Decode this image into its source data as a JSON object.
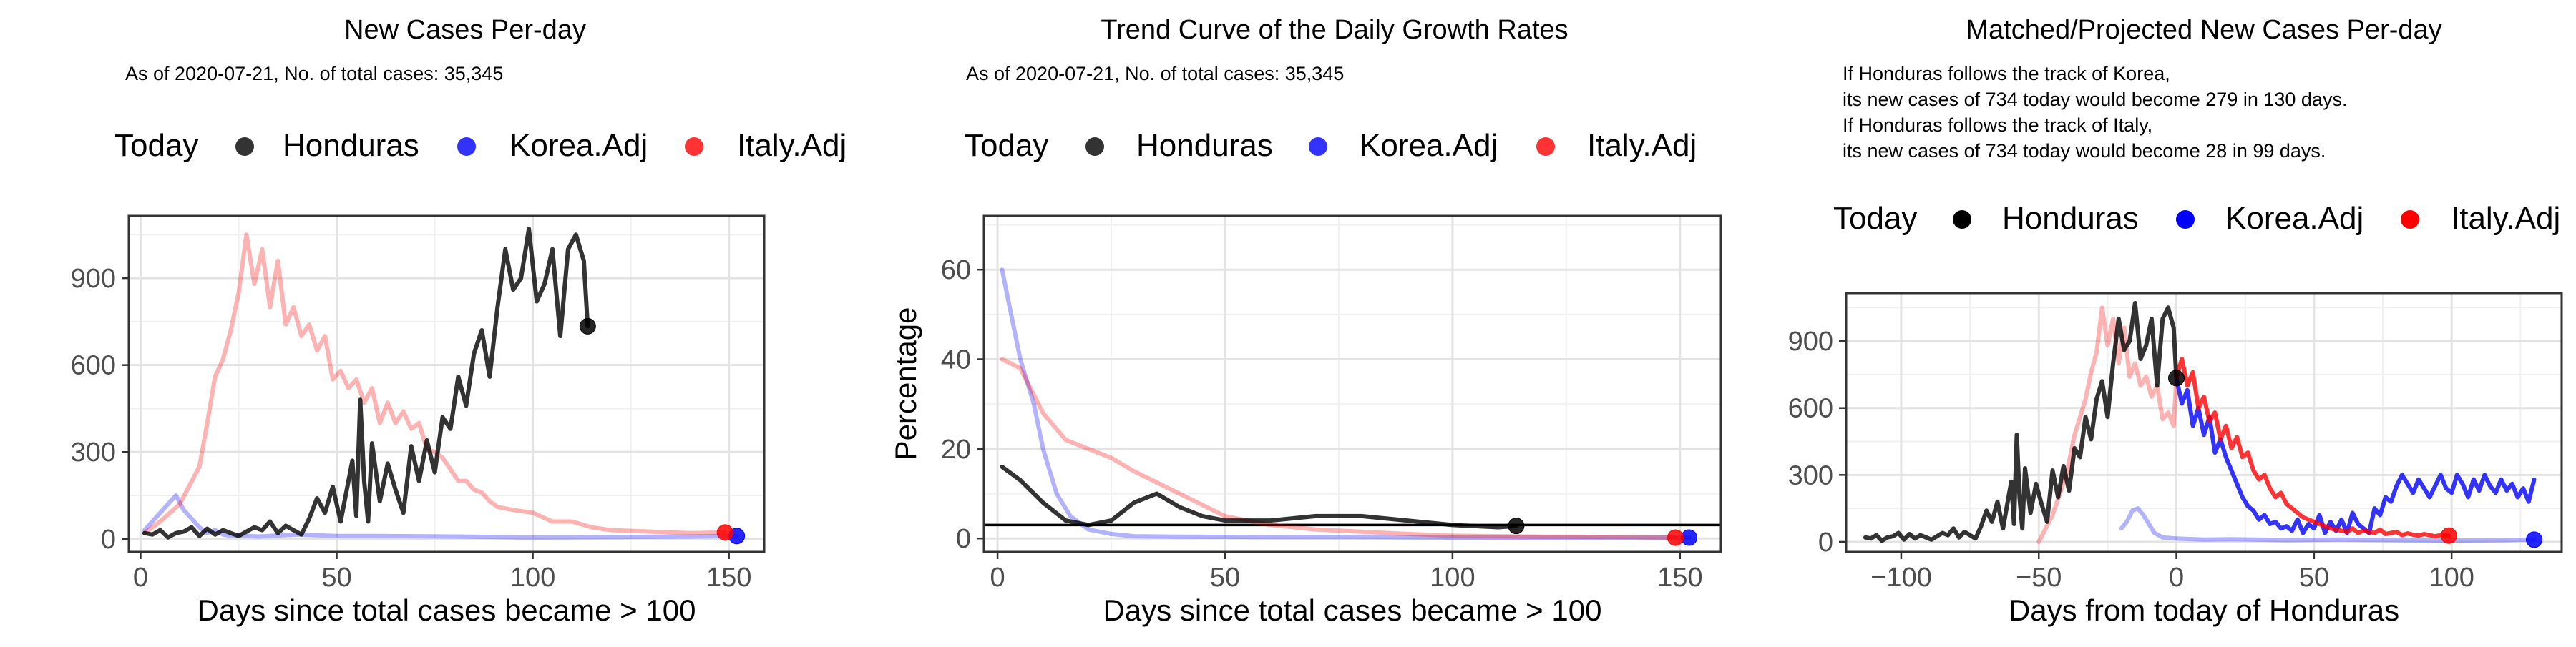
{
  "chart_data": [
    {
      "type": "line",
      "title": "New Cases Per-day",
      "subtitle": "As of 2020-07-21, No. of total cases: 35,345",
      "legend": {
        "title": "Today",
        "placement": "top",
        "entries": [
          "Honduras",
          "Korea.Adj",
          "Italy.Adj"
        ]
      },
      "xlabel": "Days since total cases became > 100",
      "ylabel": "",
      "xlim": [
        -3,
        159
      ],
      "ylim": [
        -45,
        1115
      ],
      "xticks": [
        0,
        50,
        100,
        150
      ],
      "yticks": [
        0,
        300,
        600,
        900
      ],
      "grid": true,
      "series": [
        {
          "name": "Honduras",
          "color": "#000000",
          "opacity": 0.8,
          "width": 6,
          "x": [
            1,
            3,
            5,
            7,
            9,
            11,
            13,
            15,
            17,
            19,
            21,
            23,
            25,
            27,
            29,
            31,
            33,
            35,
            37,
            39,
            41,
            43,
            45,
            47,
            49,
            51,
            53,
            54,
            55,
            56,
            57,
            58,
            59,
            61,
            63,
            65,
            67,
            69,
            71,
            73,
            75,
            77,
            79,
            81,
            83,
            85,
            87,
            89,
            91,
            93,
            95,
            97,
            99,
            101,
            103,
            105,
            107,
            109,
            111,
            113,
            114
          ],
          "y": [
            20,
            15,
            30,
            5,
            20,
            25,
            40,
            10,
            35,
            15,
            30,
            20,
            10,
            25,
            40,
            30,
            60,
            20,
            45,
            30,
            15,
            70,
            140,
            90,
            180,
            60,
            200,
            270,
            80,
            480,
            200,
            60,
            330,
            130,
            260,
            170,
            90,
            320,
            200,
            340,
            230,
            420,
            380,
            560,
            460,
            640,
            720,
            560,
            800,
            1000,
            860,
            900,
            1070,
            820,
            880,
            1000,
            700,
            1000,
            1050,
            960,
            734
          ]
        },
        {
          "name": "Korea.Adj",
          "color": "#0000ff",
          "opacity": 0.3,
          "width": 6,
          "x": [
            1,
            3,
            5,
            7,
            9,
            11,
            13,
            15,
            17,
            19,
            21,
            23,
            25,
            30,
            40,
            50,
            60,
            80,
            100,
            120,
            140,
            152
          ],
          "y": [
            30,
            60,
            90,
            120,
            150,
            100,
            70,
            40,
            20,
            30,
            15,
            10,
            12,
            8,
            15,
            10,
            10,
            8,
            5,
            6,
            8,
            10
          ]
        },
        {
          "name": "Italy.Adj",
          "color": "#ff0000",
          "opacity": 0.3,
          "width": 6,
          "x": [
            1,
            5,
            10,
            15,
            17,
            19,
            21,
            23,
            25,
            27,
            29,
            31,
            33,
            35,
            37,
            39,
            41,
            43,
            45,
            47,
            49,
            51,
            53,
            55,
            57,
            59,
            61,
            63,
            65,
            67,
            69,
            71,
            73,
            75,
            77,
            79,
            81,
            83,
            85,
            87,
            89,
            91,
            95,
            100,
            105,
            110,
            115,
            120,
            130,
            140,
            149
          ],
          "y": [
            20,
            60,
            120,
            250,
            400,
            560,
            620,
            720,
            850,
            1050,
            880,
            1000,
            800,
            960,
            740,
            800,
            700,
            740,
            650,
            700,
            550,
            580,
            520,
            550,
            470,
            520,
            400,
            470,
            400,
            440,
            380,
            400,
            310,
            300,
            280,
            240,
            200,
            200,
            170,
            160,
            130,
            110,
            100,
            90,
            60,
            60,
            40,
            30,
            25,
            20,
            22
          ]
        }
      ],
      "today_points": [
        {
          "name": "Honduras",
          "x": 114,
          "y": 734,
          "color": "#000000"
        },
        {
          "name": "Korea.Adj",
          "x": 152,
          "y": 10,
          "color": "#0000ff"
        },
        {
          "name": "Italy.Adj",
          "x": 149,
          "y": 22,
          "color": "#ff0000"
        }
      ]
    },
    {
      "type": "line",
      "title": "Trend Curve of the Daily Growth Rates",
      "subtitle": "As of 2020-07-21, No. of total cases: 35,345",
      "legend": {
        "title": "Today",
        "placement": "top",
        "entries": [
          "Honduras",
          "Korea.Adj",
          "Italy.Adj"
        ]
      },
      "xlabel": "Days since total cases became > 100",
      "ylabel": "Percentage",
      "xlim": [
        -3,
        159
      ],
      "ylim": [
        -3,
        72
      ],
      "xticks": [
        0,
        50,
        100,
        150
      ],
      "yticks": [
        0,
        20,
        40,
        60
      ],
      "grid": true,
      "hline": 3,
      "series": [
        {
          "name": "Honduras",
          "color": "#000000",
          "opacity": 0.8,
          "width": 6,
          "x": [
            1,
            5,
            10,
            15,
            20,
            25,
            30,
            35,
            40,
            45,
            50,
            60,
            70,
            80,
            90,
            100,
            110,
            114
          ],
          "y": [
            16,
            13,
            8,
            4,
            3,
            4,
            8,
            10,
            7,
            5,
            4,
            4,
            5,
            5,
            4,
            3,
            2.5,
            2.8
          ]
        },
        {
          "name": "Korea.Adj",
          "color": "#0000ff",
          "opacity": 0.3,
          "width": 6,
          "x": [
            1,
            3,
            5,
            8,
            10,
            13,
            16,
            20,
            25,
            30,
            40,
            60,
            80,
            100,
            120,
            140,
            152
          ],
          "y": [
            60,
            50,
            40,
            30,
            20,
            10,
            5,
            2,
            1,
            0.5,
            0.4,
            0.3,
            0.3,
            0.2,
            0.2,
            0.2,
            0.2
          ]
        },
        {
          "name": "Italy.Adj",
          "color": "#ff0000",
          "opacity": 0.3,
          "width": 6,
          "x": [
            1,
            5,
            10,
            15,
            20,
            25,
            30,
            40,
            50,
            60,
            70,
            80,
            90,
            100,
            120,
            140,
            149
          ],
          "y": [
            40,
            38,
            28,
            22,
            20,
            18,
            15,
            10,
            5,
            3,
            2,
            1.5,
            1,
            0.6,
            0.4,
            0.3,
            0.2
          ]
        }
      ],
      "today_points": [
        {
          "name": "Honduras",
          "x": 114,
          "y": 2.8,
          "color": "#000000"
        },
        {
          "name": "Korea.Adj",
          "x": 152,
          "y": 0.2,
          "color": "#0000ff"
        },
        {
          "name": "Italy.Adj",
          "x": 149,
          "y": 0.2,
          "color": "#ff0000"
        }
      ]
    },
    {
      "type": "line",
      "title": "Matched/Projected New Cases Per-day",
      "subtitle_lines": [
        "If Honduras follows the track of Korea,",
        "its new cases of 734 today would become 279 in 130 days.",
        "If Honduras follows the track of Italy,",
        "its new cases of 734 today would become 28 in 99 days."
      ],
      "legend": {
        "title": "Today",
        "placement": "top",
        "entries": [
          "Honduras",
          "Korea.Adj",
          "Italy.Adj"
        ]
      },
      "xlabel": "Days from today of Honduras",
      "ylabel": "",
      "xlim": [
        -120,
        140
      ],
      "ylim": [
        -45,
        1115
      ],
      "xticks": [
        -100,
        -50,
        0,
        50,
        100
      ],
      "yticks": [
        0,
        300,
        600,
        900
      ],
      "grid": true,
      "series": [
        {
          "name": "Honduras",
          "color": "#000000",
          "opacity": 0.8,
          "width": 6,
          "x": [
            -113,
            -111,
            -109,
            -107,
            -105,
            -103,
            -101,
            -99,
            -97,
            -95,
            -93,
            -91,
            -89,
            -87,
            -85,
            -83,
            -81,
            -79,
            -77,
            -75,
            -73,
            -71,
            -69,
            -67,
            -65,
            -63,
            -61,
            -60,
            -59,
            -58,
            -57,
            -56,
            -55,
            -53,
            -51,
            -49,
            -47,
            -45,
            -43,
            -41,
            -39,
            -37,
            -35,
            -33,
            -31,
            -29,
            -27,
            -25,
            -23,
            -21,
            -19,
            -17,
            -15,
            -13,
            -11,
            -9,
            -7,
            -5,
            -3,
            -1,
            0
          ],
          "y": [
            20,
            15,
            30,
            5,
            20,
            25,
            40,
            10,
            35,
            15,
            30,
            20,
            10,
            25,
            40,
            30,
            60,
            20,
            45,
            30,
            15,
            70,
            140,
            90,
            180,
            60,
            200,
            270,
            80,
            480,
            200,
            60,
            330,
            130,
            260,
            170,
            90,
            320,
            200,
            340,
            230,
            420,
            380,
            560,
            460,
            640,
            720,
            560,
            800,
            1000,
            860,
            900,
            1070,
            820,
            880,
            1000,
            700,
            1000,
            1050,
            960,
            734
          ]
        },
        {
          "name": "Korea.Adj (matched)",
          "color": "#0000ff",
          "opacity": 0.3,
          "width": 6,
          "x": [
            -20,
            -18,
            -16,
            -14,
            -12,
            -10,
            -8,
            -5,
            0,
            10,
            20,
            40,
            60,
            80,
            100,
            120,
            130
          ],
          "y": [
            60,
            90,
            140,
            150,
            120,
            80,
            40,
            20,
            15,
            10,
            12,
            8,
            10,
            8,
            6,
            8,
            10
          ]
        },
        {
          "name": "Italy.Adj (matched)",
          "color": "#ff0000",
          "opacity": 0.3,
          "width": 6,
          "x": [
            -50,
            -45,
            -40,
            -37,
            -35,
            -33,
            -31,
            -29,
            -27,
            -25,
            -23,
            -21,
            -19,
            -17,
            -15,
            -13,
            -11,
            -9,
            -7,
            -5,
            -3,
            -1,
            0
          ],
          "y": [
            0,
            120,
            300,
            480,
            560,
            640,
            760,
            850,
            1050,
            880,
            1000,
            800,
            960,
            740,
            800,
            700,
            740,
            650,
            700,
            550,
            580,
            520,
            734
          ]
        },
        {
          "name": "Korea.Adj",
          "color": "#0000ff",
          "opacity": 0.8,
          "width": 6,
          "x": [
            0,
            2,
            4,
            6,
            8,
            10,
            12,
            14,
            16,
            18,
            20,
            22,
            24,
            26,
            28,
            30,
            32,
            34,
            36,
            38,
            40,
            42,
            44,
            46,
            48,
            50,
            52,
            54,
            56,
            58,
            60,
            62,
            64,
            66,
            68,
            70,
            72,
            74,
            76,
            78,
            80,
            82,
            84,
            86,
            88,
            90,
            92,
            94,
            96,
            98,
            100,
            102,
            104,
            106,
            108,
            110,
            112,
            114,
            116,
            118,
            120,
            122,
            124,
            126,
            128,
            130
          ],
          "y": [
            734,
            620,
            680,
            520,
            600,
            480,
            560,
            400,
            460,
            380,
            320,
            260,
            200,
            160,
            140,
            100,
            120,
            80,
            90,
            60,
            70,
            50,
            100,
            40,
            80,
            60,
            120,
            40,
            90,
            50,
            100,
            40,
            130,
            80,
            60,
            40,
            150,
            120,
            200,
            180,
            250,
            300,
            260,
            220,
            280,
            240,
            200,
            250,
            300,
            240,
            220,
            300,
            260,
            200,
            280,
            230,
            300,
            250,
            220,
            280,
            230,
            260,
            200,
            240,
            180,
            279
          ]
        },
        {
          "name": "Italy.Adj",
          "color": "#ff0000",
          "opacity": 0.8,
          "width": 6,
          "x": [
            0,
            2,
            4,
            6,
            8,
            10,
            12,
            14,
            16,
            18,
            20,
            22,
            24,
            26,
            28,
            30,
            32,
            34,
            36,
            38,
            40,
            42,
            44,
            46,
            48,
            50,
            52,
            54,
            56,
            58,
            60,
            62,
            64,
            66,
            68,
            70,
            72,
            74,
            76,
            78,
            80,
            82,
            84,
            86,
            88,
            90,
            92,
            94,
            96,
            99
          ],
          "y": [
            734,
            820,
            700,
            760,
            600,
            650,
            540,
            580,
            460,
            520,
            420,
            470,
            380,
            400,
            320,
            280,
            300,
            240,
            200,
            220,
            170,
            150,
            130,
            110,
            100,
            90,
            80,
            70,
            60,
            55,
            50,
            45,
            60,
            40,
            50,
            45,
            40,
            55,
            35,
            40,
            45,
            30,
            38,
            32,
            28,
            35,
            30,
            25,
            30,
            28
          ]
        }
      ],
      "today_points": [
        {
          "name": "Honduras",
          "x": 0,
          "y": 734,
          "color": "#000000"
        },
        {
          "name": "Korea.Adj",
          "x": 130,
          "y": 10,
          "color": "#0000ff"
        },
        {
          "name": "Italy.Adj",
          "x": 99,
          "y": 28,
          "color": "#ff0000"
        }
      ]
    }
  ]
}
